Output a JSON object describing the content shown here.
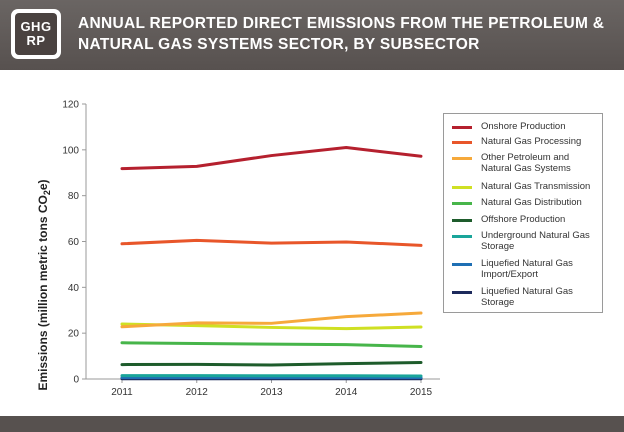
{
  "header": {
    "logo_line1": "GHG",
    "logo_line2": "RP",
    "title": "ANNUAL REPORTED DIRECT EMISSIONS FROM THE PETROLEUM & NATURAL GAS SYSTEMS SECTOR, BY SUBSECTOR"
  },
  "chart_data": {
    "type": "line",
    "title": "ANNUAL REPORTED DIRECT EMISSIONS FROM THE PETROLEUM & NATURAL GAS SYSTEMS SECTOR, BY SUBSECTOR",
    "x": [
      "2011",
      "2012",
      "2013",
      "2014",
      "2015"
    ],
    "xlabel": "",
    "ylabel_main": "Emissions (million metric tons CO",
    "ylabel_sub": "2",
    "ylabel_end": "e)",
    "ylim": [
      0,
      120
    ],
    "yticks": [
      0,
      20,
      40,
      60,
      80,
      100,
      120
    ],
    "grid": false,
    "legend_position": "right",
    "series": [
      {
        "name": "Onshore Production",
        "color": "#b5202e",
        "values": [
          91.8,
          92.8,
          97.5,
          101.0,
          97.2
        ]
      },
      {
        "name": "Natural Gas Processing",
        "color": "#e8562a",
        "values": [
          59.0,
          60.5,
          59.3,
          59.8,
          58.3
        ]
      },
      {
        "name": "Other Petroleum and Natural Gas Systems",
        "color": "#f6a93b",
        "values": [
          22.8,
          24.5,
          24.3,
          27.2,
          28.8
        ]
      },
      {
        "name": "Natural Gas Transmission",
        "color": "#cfe023",
        "values": [
          24.0,
          23.3,
          22.5,
          22.0,
          22.7
        ]
      },
      {
        "name": "Natural Gas Distribution",
        "color": "#47b54a",
        "values": [
          15.8,
          15.5,
          15.2,
          15.0,
          14.2
        ]
      },
      {
        "name": "Offshore Production",
        "color": "#1e5c2c",
        "values": [
          6.3,
          6.4,
          6.1,
          6.7,
          7.2
        ]
      },
      {
        "name": "Underground Natural Gas Storage",
        "color": "#1aa59a",
        "values": [
          1.5,
          1.5,
          1.4,
          1.4,
          1.3
        ]
      },
      {
        "name": "Liquefied Natural Gas Import/Export",
        "color": "#1e6fb4",
        "values": [
          0.6,
          0.6,
          0.6,
          0.6,
          0.6
        ]
      },
      {
        "name": "Liquefied Natural Gas Storage",
        "color": "#1d2a5c",
        "values": [
          0.1,
          0.1,
          0.1,
          0.1,
          0.1
        ]
      }
    ]
  }
}
